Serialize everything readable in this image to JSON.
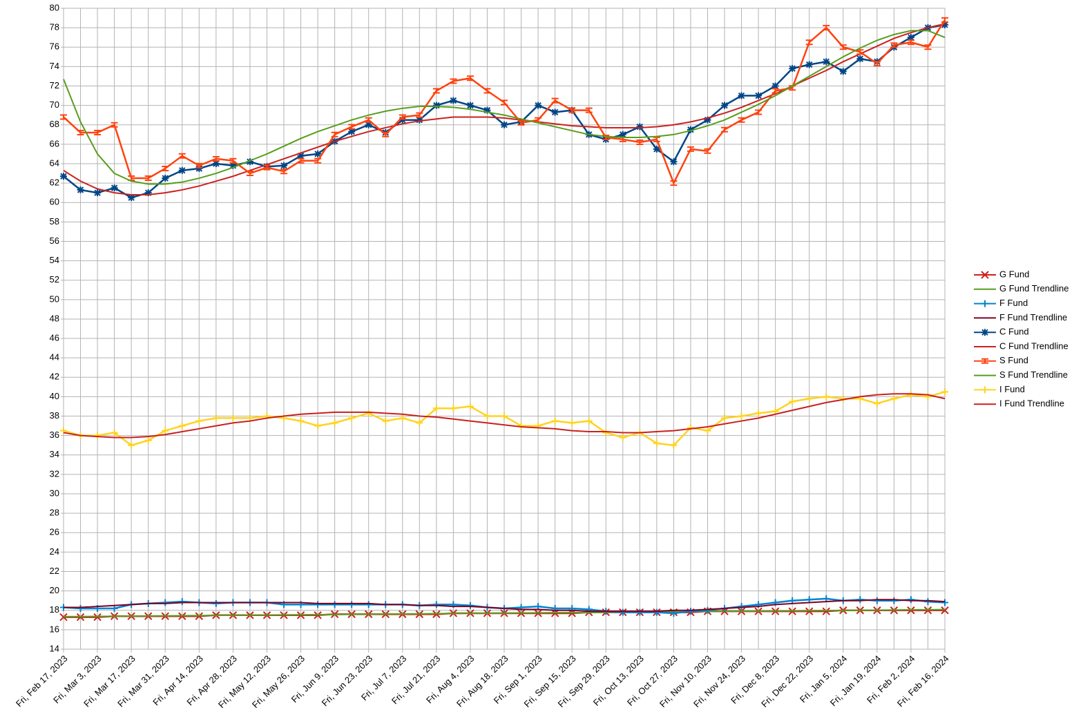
{
  "chart_data": {
    "type": "line",
    "x": [
      "2023-02-17",
      "2023-02-24",
      "2023-03-03",
      "2023-03-10",
      "2023-03-17",
      "2023-03-24",
      "2023-03-31",
      "2023-04-07",
      "2023-04-14",
      "2023-04-21",
      "2023-04-28",
      "2023-05-05",
      "2023-05-12",
      "2023-05-19",
      "2023-05-26",
      "2023-06-02",
      "2023-06-09",
      "2023-06-16",
      "2023-06-23",
      "2023-06-30",
      "2023-07-07",
      "2023-07-14",
      "2023-07-21",
      "2023-07-28",
      "2023-08-04",
      "2023-08-11",
      "2023-08-18",
      "2023-08-25",
      "2023-09-01",
      "2023-09-08",
      "2023-09-15",
      "2023-09-22",
      "2023-09-29",
      "2023-10-06",
      "2023-10-13",
      "2023-10-20",
      "2023-10-27",
      "2023-11-03",
      "2023-11-10",
      "2023-11-17",
      "2023-11-24",
      "2023-12-01",
      "2023-12-08",
      "2023-12-15",
      "2023-12-22",
      "2023-12-29",
      "2024-01-05",
      "2024-01-12",
      "2024-01-19",
      "2024-01-26",
      "2024-02-02",
      "2024-02-09",
      "2024-02-16"
    ],
    "xlim": [
      "2023-02-17",
      "2024-02-16"
    ],
    "xticks": [
      {
        "value": "2023-02-17",
        "label": "Fri, Feb 17, 2023"
      },
      {
        "value": "2023-03-03",
        "label": "Fri, Mar 3, 2023"
      },
      {
        "value": "2023-03-17",
        "label": "Fri, Mar 17, 2023"
      },
      {
        "value": "2023-03-31",
        "label": "Fri, Mar 31, 2023"
      },
      {
        "value": "2023-04-14",
        "label": "Fri, Apr 14, 2023"
      },
      {
        "value": "2023-04-28",
        "label": "Fri, Apr 28, 2023"
      },
      {
        "value": "2023-05-12",
        "label": "Fri, May 12, 2023"
      },
      {
        "value": "2023-05-26",
        "label": "Fri, May 26, 2023"
      },
      {
        "value": "2023-06-09",
        "label": "Fri, Jun 9, 2023"
      },
      {
        "value": "2023-06-23",
        "label": "Fri, Jun 23, 2023"
      },
      {
        "value": "2023-07-07",
        "label": "Fri, Jul 7, 2023"
      },
      {
        "value": "2023-07-21",
        "label": "Fri, Jul 21, 2023"
      },
      {
        "value": "2023-08-04",
        "label": "Fri, Aug 4, 2023"
      },
      {
        "value": "2023-08-18",
        "label": "Fri, Aug 18, 2023"
      },
      {
        "value": "2023-09-01",
        "label": "Fri, Sep 1, 2023"
      },
      {
        "value": "2023-09-15",
        "label": "Fri, Sep 15, 2023"
      },
      {
        "value": "2023-09-29",
        "label": "Fri, Sep 29, 2023"
      },
      {
        "value": "2023-10-13",
        "label": "Fri, Oct 13, 2023"
      },
      {
        "value": "2023-10-27",
        "label": "Fri, Oct 27, 2023"
      },
      {
        "value": "2023-11-10",
        "label": "Fri, Nov 10, 2023"
      },
      {
        "value": "2023-11-24",
        "label": "Fri, Nov 24, 2023"
      },
      {
        "value": "2023-12-08",
        "label": "Fri, Dec 8, 2023"
      },
      {
        "value": "2023-12-22",
        "label": "Fri, Dec 22, 2023"
      },
      {
        "value": "2024-01-05",
        "label": "Fri, Jan 5, 2024"
      },
      {
        "value": "2024-01-19",
        "label": "Fri, Jan 19, 2024"
      },
      {
        "value": "2024-02-02",
        "label": "Fri, Feb 2, 2024"
      },
      {
        "value": "2024-02-16",
        "label": "Fri, Feb 16, 2024"
      }
    ],
    "ylim": [
      14,
      80
    ],
    "yticks": [
      14,
      16,
      18,
      20,
      22,
      24,
      26,
      28,
      30,
      32,
      34,
      36,
      38,
      40,
      42,
      44,
      46,
      48,
      50,
      52,
      54,
      56,
      58,
      60,
      62,
      64,
      66,
      68,
      70,
      72,
      74,
      76,
      78,
      80
    ],
    "grid": true,
    "legend": "right",
    "series": [
      {
        "name": "G Fund",
        "color": "#c9211e",
        "marker": "x",
        "values": [
          17.3,
          17.3,
          17.3,
          17.4,
          17.4,
          17.4,
          17.4,
          17.4,
          17.4,
          17.5,
          17.5,
          17.5,
          17.5,
          17.5,
          17.5,
          17.5,
          17.6,
          17.6,
          17.6,
          17.6,
          17.6,
          17.6,
          17.6,
          17.7,
          17.7,
          17.7,
          17.7,
          17.7,
          17.7,
          17.7,
          17.7,
          17.8,
          17.8,
          17.8,
          17.8,
          17.8,
          17.8,
          17.8,
          17.9,
          17.9,
          17.9,
          17.9,
          17.9,
          17.9,
          17.9,
          17.9,
          18.0,
          18.0,
          18.0,
          18.0,
          18.0,
          18.0,
          18.0
        ]
      },
      {
        "name": "G Fund Trendline",
        "color": "#579d1c",
        "values": [
          17.35,
          17.36,
          17.38,
          17.39,
          17.41,
          17.42,
          17.43,
          17.45,
          17.46,
          17.48,
          17.49,
          17.5,
          17.52,
          17.53,
          17.55,
          17.56,
          17.57,
          17.59,
          17.6,
          17.62,
          17.63,
          17.64,
          17.66,
          17.67,
          17.69,
          17.7,
          17.71,
          17.73,
          17.74,
          17.76,
          17.77,
          17.78,
          17.8,
          17.81,
          17.83,
          17.84,
          17.85,
          17.87,
          17.88,
          17.9,
          17.91,
          17.92,
          17.94,
          17.95,
          17.97,
          17.98,
          17.99,
          18.01,
          18.02,
          18.04,
          18.05,
          18.06,
          18.08
        ]
      },
      {
        "name": "F Fund",
        "color": "#0084d1",
        "marker": "plus",
        "values": [
          18.3,
          18.2,
          18.2,
          18.2,
          18.6,
          18.7,
          18.8,
          18.9,
          18.8,
          18.7,
          18.8,
          18.8,
          18.8,
          18.6,
          18.6,
          18.6,
          18.6,
          18.6,
          18.6,
          18.6,
          18.6,
          18.5,
          18.6,
          18.6,
          18.5,
          18.3,
          18.2,
          18.3,
          18.4,
          18.2,
          18.2,
          18.1,
          17.9,
          17.8,
          17.8,
          17.8,
          17.7,
          17.9,
          18.0,
          18.2,
          18.4,
          18.6,
          18.8,
          19.0,
          19.1,
          19.2,
          19.0,
          19.1,
          19.0,
          19.0,
          19.1,
          18.9,
          18.8
        ]
      },
      {
        "name": "F Fund Trendline",
        "color": "#7e0021",
        "values": [
          18.3,
          18.3,
          18.4,
          18.5,
          18.6,
          18.7,
          18.7,
          18.8,
          18.8,
          18.8,
          18.8,
          18.8,
          18.8,
          18.8,
          18.8,
          18.7,
          18.7,
          18.7,
          18.7,
          18.6,
          18.6,
          18.5,
          18.5,
          18.4,
          18.4,
          18.3,
          18.2,
          18.1,
          18.1,
          18.0,
          18.0,
          17.9,
          17.9,
          17.9,
          17.9,
          17.9,
          18.0,
          18.0,
          18.1,
          18.2,
          18.3,
          18.4,
          18.6,
          18.7,
          18.8,
          18.9,
          19.0,
          19.0,
          19.1,
          19.1,
          19.0,
          19.0,
          18.9
        ]
      },
      {
        "name": "C Fund",
        "color": "#004586",
        "marker": "asterisk",
        "values": [
          62.7,
          61.3,
          61.0,
          61.5,
          60.5,
          61.0,
          62.5,
          63.3,
          63.5,
          64.0,
          63.8,
          64.2,
          63.7,
          63.8,
          64.8,
          65.0,
          66.3,
          67.3,
          68.0,
          67.2,
          68.5,
          68.5,
          70.0,
          70.5,
          70.0,
          69.5,
          68.0,
          68.3,
          70.0,
          69.3,
          69.5,
          67.0,
          66.5,
          67.0,
          67.8,
          65.5,
          64.2,
          67.5,
          68.5,
          70.0,
          71.0,
          71.0,
          72.0,
          73.8,
          74.2,
          74.5,
          73.5,
          74.8,
          74.5,
          76.0,
          77.0,
          78.0,
          78.3
        ]
      },
      {
        "name": "C Fund Trendline",
        "color": "#c9211e",
        "values": [
          63.3,
          62.2,
          61.4,
          61.0,
          60.8,
          60.8,
          61.0,
          61.3,
          61.7,
          62.2,
          62.7,
          63.3,
          63.9,
          64.5,
          65.1,
          65.7,
          66.3,
          66.8,
          67.3,
          67.7,
          68.1,
          68.4,
          68.6,
          68.8,
          68.8,
          68.8,
          68.7,
          68.5,
          68.3,
          68.1,
          67.9,
          67.8,
          67.7,
          67.7,
          67.7,
          67.8,
          68.0,
          68.3,
          68.7,
          69.2,
          69.8,
          70.5,
          71.2,
          72.0,
          72.8,
          73.6,
          74.5,
          75.3,
          76.1,
          76.9,
          77.5,
          78.0,
          78.4
        ]
      },
      {
        "name": "S Fund",
        "color": "#ff420e",
        "marker": "ibeam",
        "values": [
          68.8,
          67.2,
          67.2,
          68.0,
          62.5,
          62.5,
          63.5,
          64.8,
          63.8,
          64.5,
          64.3,
          63.0,
          63.6,
          63.2,
          64.3,
          64.3,
          67.0,
          67.8,
          68.5,
          67.0,
          68.8,
          69.0,
          71.5,
          72.5,
          72.8,
          71.5,
          70.3,
          68.2,
          68.5,
          70.5,
          69.5,
          69.5,
          66.7,
          66.5,
          66.2,
          66.5,
          62.0,
          65.5,
          65.3,
          67.5,
          68.5,
          69.3,
          71.5,
          71.8,
          76.5,
          78.0,
          76.0,
          75.5,
          74.3,
          76.2,
          76.5,
          76.0,
          78.8
        ]
      },
      {
        "name": "S Fund Trendline",
        "color": "#579d1c",
        "values": [
          72.7,
          68.3,
          65.0,
          63.0,
          62.2,
          61.9,
          61.9,
          62.1,
          62.5,
          63.0,
          63.6,
          64.3,
          65.0,
          65.8,
          66.6,
          67.3,
          67.9,
          68.5,
          69.0,
          69.4,
          69.7,
          69.9,
          69.9,
          69.8,
          69.6,
          69.3,
          69.0,
          68.6,
          68.2,
          67.8,
          67.4,
          67.0,
          66.8,
          66.7,
          66.7,
          66.8,
          67.0,
          67.4,
          67.9,
          68.5,
          69.3,
          70.1,
          71.0,
          72.0,
          73.0,
          74.0,
          75.0,
          75.9,
          76.7,
          77.3,
          77.7,
          77.7,
          77.0
        ]
      },
      {
        "name": "I Fund",
        "color": "#ffd320",
        "marker": "plus",
        "values": [
          36.5,
          36.0,
          36.0,
          36.3,
          35.0,
          35.5,
          36.5,
          37.0,
          37.5,
          37.8,
          37.8,
          37.8,
          38.0,
          37.8,
          37.5,
          37.0,
          37.3,
          37.8,
          38.3,
          37.5,
          37.8,
          37.3,
          38.8,
          38.8,
          39.0,
          38.0,
          38.0,
          37.0,
          37.0,
          37.5,
          37.3,
          37.5,
          36.3,
          35.8,
          36.3,
          35.2,
          35.0,
          36.8,
          36.5,
          37.8,
          38.0,
          38.3,
          38.5,
          39.5,
          39.8,
          40.0,
          39.8,
          39.8,
          39.3,
          39.8,
          40.2,
          40.0,
          40.5
        ]
      },
      {
        "name": "I Fund Trendline",
        "color": "#c9211e",
        "values": [
          36.3,
          36.0,
          35.9,
          35.8,
          35.8,
          35.9,
          36.1,
          36.4,
          36.7,
          37.0,
          37.3,
          37.5,
          37.8,
          38.0,
          38.2,
          38.3,
          38.4,
          38.4,
          38.4,
          38.3,
          38.2,
          38.0,
          37.9,
          37.7,
          37.5,
          37.3,
          37.1,
          36.9,
          36.8,
          36.7,
          36.5,
          36.4,
          36.4,
          36.3,
          36.3,
          36.4,
          36.5,
          36.7,
          36.9,
          37.2,
          37.5,
          37.8,
          38.2,
          38.6,
          39.0,
          39.4,
          39.7,
          40.0,
          40.2,
          40.3,
          40.3,
          40.2,
          39.8
        ]
      }
    ]
  }
}
